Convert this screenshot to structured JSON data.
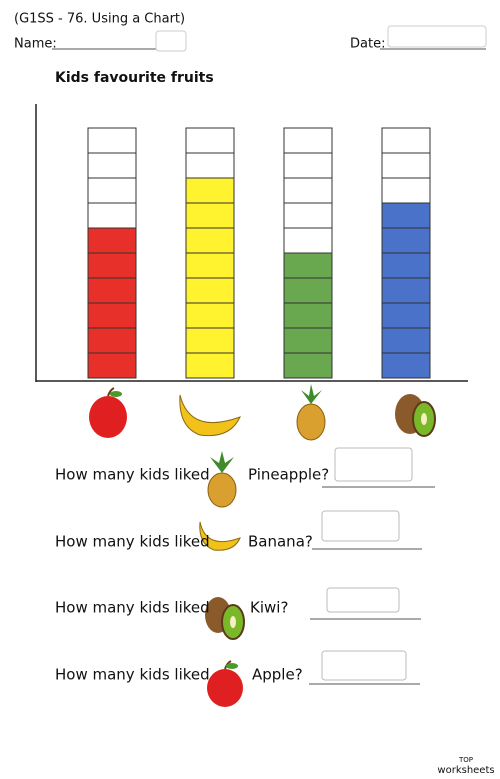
{
  "header": {
    "title": "(G1SS - 76. Using a Chart)",
    "name_label": "Name:",
    "date_label": "Date:"
  },
  "chart_data": {
    "type": "bar",
    "title": "Kids favourite fruits",
    "categories": [
      null,
      null,
      null,
      null
    ],
    "values": [
      6,
      8,
      5,
      7
    ],
    "colors": [
      "#e8302a",
      "#fff22e",
      "#6aa84f",
      "#4a72c9"
    ],
    "ylim": [
      0,
      10
    ],
    "yticks": [
      0,
      1,
      2,
      3,
      4,
      5,
      6,
      7,
      8,
      9,
      10
    ]
  },
  "questions": [
    {
      "prefix": "How many kids liked",
      "fruit": "Pineapple?"
    },
    {
      "prefix": "How many kids liked",
      "fruit": "Banana?"
    },
    {
      "prefix": "How many kids liked",
      "fruit": "Kiwi?"
    },
    {
      "prefix": "How many kids liked",
      "fruit": "Apple?"
    }
  ],
  "footer": {
    "logo_top": "TOP",
    "logo_bottom": "worksheets"
  }
}
